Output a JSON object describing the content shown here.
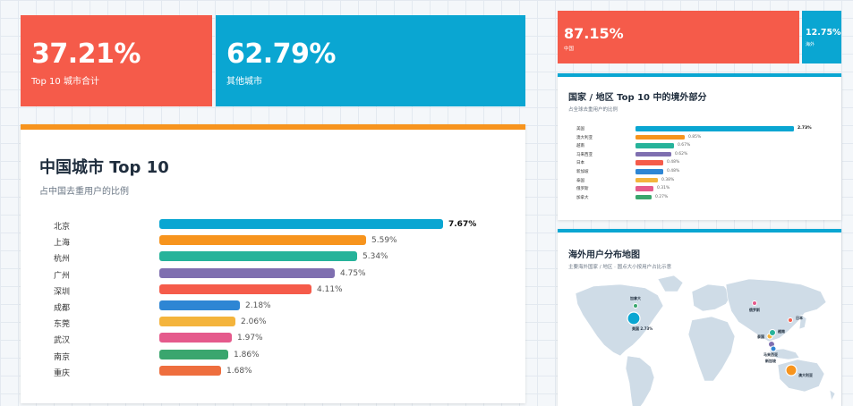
{
  "summary": {
    "top10": {
      "value": "37.21%",
      "label": "Top 10 城市合计"
    },
    "others": {
      "value": "62.79%",
      "label": "其他城市"
    }
  },
  "summary_right": {
    "china": {
      "value": "87.15%",
      "label": "中国"
    },
    "overseas": {
      "value": "12.75%",
      "label": "海外"
    }
  },
  "colors": {
    "red": "#f55b4a",
    "blue": "#0aa6d2",
    "orange": "#f7941d",
    "green": "#26b39a",
    "purple": "#7f6fb0",
    "tomato": "#f55b4a",
    "azure": "#2e86d4",
    "yellow": "#f4b43c",
    "pink": "#e55a8c",
    "darkgreen": "#3aa66e",
    "coral": "#ee6e3e"
  },
  "city_card": {
    "title": "中国城市 Top 10",
    "subtitle": "占中国去重用户的比例"
  },
  "country_card": {
    "title": "国家 / 地区 Top 10 中的境外部分",
    "subtitle": "占全球去重用户的比例"
  },
  "map_card": {
    "title": "海外用户分布地图",
    "subtitle": "主要海外国家 / 地区 · 圆点大小按用户占比示意",
    "labels": [
      {
        "name": "加拿大"
      },
      {
        "name": "俄罗斯"
      },
      {
        "name": "日本"
      },
      {
        "name": "美国 2.73%"
      },
      {
        "name": "泰国"
      },
      {
        "name": "越南"
      },
      {
        "name": "马来西亚"
      },
      {
        "name": "新加坡"
      },
      {
        "name": "澳大利亚"
      }
    ]
  },
  "chart_data": [
    {
      "type": "bar",
      "title": "中国城市 Top 10",
      "subtitle": "占中国去重用户的比例",
      "orientation": "horizontal",
      "categories": [
        "北京",
        "上海",
        "杭州",
        "广州",
        "深圳",
        "成都",
        "东莞",
        "武汉",
        "南京",
        "重庆"
      ],
      "values": [
        7.67,
        5.59,
        5.34,
        4.75,
        4.11,
        2.18,
        2.06,
        1.97,
        1.86,
        1.68
      ],
      "value_labels": [
        "7.67%",
        "5.59%",
        "5.34%",
        "4.75%",
        "4.11%",
        "2.18%",
        "2.06%",
        "1.97%",
        "1.86%",
        "1.68%"
      ],
      "bar_colors": [
        "#0aa6d2",
        "#f7941d",
        "#26b39a",
        "#7f6fb0",
        "#f55b4a",
        "#2e86d4",
        "#f4b43c",
        "#e55a8c",
        "#3aa66e",
        "#ee6e3e"
      ],
      "xlim": [
        0,
        7.67
      ],
      "grid": false
    },
    {
      "type": "bar",
      "title": "国家 / 地区 Top 10 中的境外部分",
      "subtitle": "占全球去重用户的比例",
      "orientation": "horizontal",
      "categories": [
        "美国",
        "澳大利亚",
        "越南",
        "马来西亚",
        "日本",
        "新加坡",
        "泰国",
        "俄罗斯",
        "加拿大"
      ],
      "values": [
        2.73,
        0.85,
        0.67,
        0.62,
        0.48,
        0.48,
        0.38,
        0.31,
        0.27
      ],
      "value_labels": [
        "2.73%",
        "0.85%",
        "0.67%",
        "0.62%",
        "0.48%",
        "0.48%",
        "0.38%",
        "0.31%",
        "0.27%"
      ],
      "bar_colors": [
        "#0aa6d2",
        "#f7941d",
        "#26b39a",
        "#7f6fb0",
        "#f55b4a",
        "#2e86d4",
        "#f4b43c",
        "#e55a8c",
        "#3aa66e"
      ],
      "xlim": [
        0,
        2.73
      ],
      "grid": false
    }
  ]
}
